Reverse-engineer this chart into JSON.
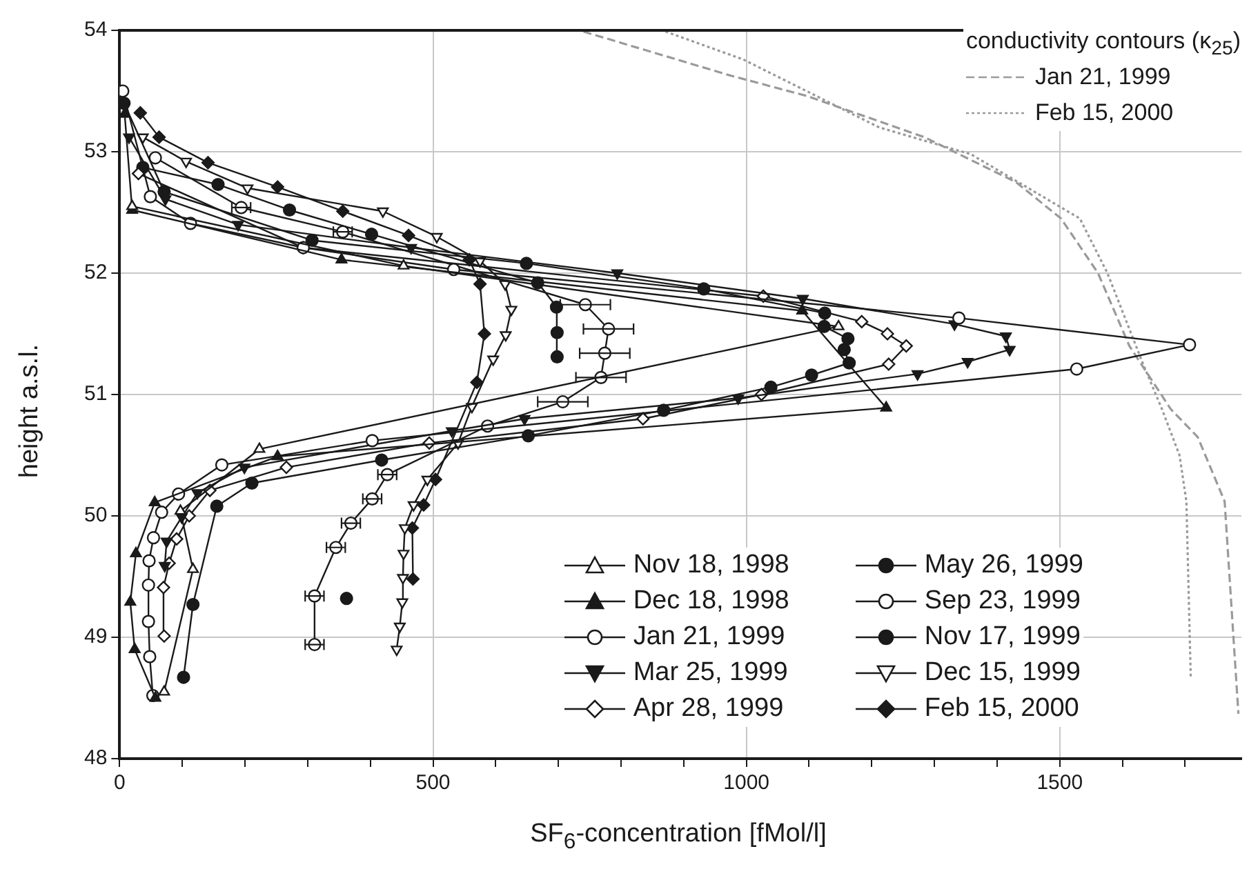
{
  "chart_data": {
    "type": "line",
    "xlabel": "SF$_{6}$-concentration [fMol/l]",
    "ylabel": "height a.s.l.",
    "legend_title": "conductivity contours (κ$_{25}$)",
    "xlim": [
      0,
      1790
    ],
    "ylim": [
      48,
      54
    ],
    "xticks": [
      0,
      {
        "value": 100,
        "label": null
      },
      {
        "value": 200,
        "label": null
      },
      {
        "value": 300,
        "label": null
      },
      {
        "value": 400,
        "label": null
      },
      500,
      {
        "value": 600,
        "label": null
      },
      {
        "value": 700,
        "label": null
      },
      {
        "value": 800,
        "label": null
      },
      {
        "value": 900,
        "label": null
      },
      1000,
      {
        "value": 1100,
        "label": null
      },
      {
        "value": 1200,
        "label": null
      },
      {
        "value": 1300,
        "label": null
      },
      {
        "value": 1400,
        "label": null
      },
      1500,
      {
        "value": 1600,
        "label": null
      },
      {
        "value": 1700,
        "label": null
      }
    ],
    "yticks": [
      48,
      49,
      50,
      51,
      52,
      53,
      54
    ],
    "grid": true,
    "legend": "bottom right",
    "line_style": "solid",
    "series": [
      {
        "name": "Nov 18, 1998",
        "color": "#1a1a1a",
        "marker": "triangle_open",
        "x": [
          71,
          117,
          97,
          223,
          1147,
          453,
          20
        ],
        "values": [
          48.55,
          49.56,
          50.04,
          50.55,
          51.56,
          52.06,
          52.55
        ]
      },
      {
        "name": "Dec 18, 1998",
        "color": "#1a1a1a",
        "marker": "triangle",
        "x": [
          57,
          24,
          17,
          26,
          56,
          252,
          1223,
          1089,
          354,
          20,
          8
        ],
        "values": [
          48.5,
          48.9,
          49.29,
          49.69,
          50.11,
          50.49,
          50.89,
          51.69,
          52.11,
          52.52,
          53.31
        ]
      },
      {
        "name": "Jan 21, 1999",
        "color": "#1a1a1a",
        "marker": "circle_open",
        "x": [
          53,
          48,
          46,
          46,
          47,
          54,
          67,
          94,
          163,
          403,
          1527,
          1707,
          1339,
          533,
          293,
          113,
          49,
          5
        ],
        "values": [
          48.52,
          48.84,
          49.13,
          49.43,
          49.63,
          49.82,
          50.03,
          50.18,
          50.42,
          50.62,
          51.21,
          51.41,
          51.63,
          52.03,
          52.21,
          52.41,
          52.63,
          53.5
        ]
      },
      {
        "name": "Mar 25, 1999",
        "color": "#1a1a1a",
        "marker": "triangle_down",
        "x": [
          72,
          75,
          99,
          124,
          199,
          530,
          646,
          987,
          1273,
          1353,
          1420,
          1414,
          1332,
          1090,
          794,
          465,
          189,
          73,
          15
        ],
        "values": [
          49.59,
          49.79,
          49.99,
          50.19,
          50.4,
          50.7,
          50.8,
          50.97,
          51.17,
          51.27,
          51.37,
          51.48,
          51.58,
          51.79,
          52.0,
          52.21,
          52.4,
          52.61,
          53.12
        ]
      },
      {
        "name": "Apr 28, 1999",
        "color": "#1a1a1a",
        "marker": "diamond_open",
        "x": [
          71,
          70,
          79,
          91,
          111,
          144,
          266,
          494,
          835,
          1024,
          1227,
          1255,
          1225,
          1184,
          1027,
          293,
          30
        ],
        "values": [
          49.01,
          49.41,
          49.61,
          49.81,
          50.0,
          50.21,
          50.4,
          50.6,
          50.8,
          51.0,
          51.25,
          51.4,
          51.5,
          51.6,
          51.81,
          52.21,
          52.82
        ]
      },
      {
        "name": "May 26, 1999",
        "color": "#1a1a1a",
        "marker": "circle",
        "x": [
          102,
          117,
          155,
          211,
          418,
          652,
          868,
          1039,
          1104,
          1164,
          1156,
          1162,
          1124,
          1125,
          932,
          649,
          307,
          71,
          7
        ],
        "values": [
          48.67,
          49.27,
          50.08,
          50.27,
          50.46,
          50.66,
          50.87,
          51.06,
          51.16,
          51.26,
          51.37,
          51.46,
          51.56,
          51.67,
          51.87,
          52.08,
          52.27,
          52.67,
          53.4
        ]
      },
      {
        "name": "Sep 23, 1999",
        "color": "#1a1a1a",
        "marker": "circle_open",
        "x": [
          311,
          311,
          345,
          369,
          403,
          427,
          587,
          707,
          768,
          774,
          780,
          743,
          356,
          194,
          57
        ],
        "values": [
          48.94,
          49.34,
          49.74,
          49.94,
          50.14,
          50.34,
          50.74,
          50.94,
          51.14,
          51.34,
          51.54,
          51.74,
          52.34,
          52.54,
          52.95
        ],
        "xerrors": [
          15,
          15,
          15,
          15,
          15,
          15,
          null,
          40,
          40,
          40,
          40,
          40,
          15,
          15,
          null
        ]
      },
      {
        "name": "Nov 17, 1999",
        "color": "#1a1a1a",
        "marker": "circle",
        "x": [
          362,
          null,
          698,
          698,
          697,
          667,
          402,
          271,
          157,
          37
        ],
        "values": [
          49.32,
          null,
          51.31,
          51.51,
          51.72,
          51.92,
          52.32,
          52.52,
          52.73,
          52.87
        ]
      },
      {
        "name": "Dec 15, 1999",
        "color": "#1a1a1a",
        "marker": "triangle_down_open",
        "x": [
          442,
          447,
          451,
          452,
          453,
          455,
          469,
          491,
          540,
          562,
          596,
          616,
          625,
          615,
          575,
          506,
          420,
          204,
          106,
          37
        ],
        "values": [
          48.9,
          49.09,
          49.29,
          49.49,
          49.69,
          49.9,
          50.09,
          50.3,
          50.6,
          50.9,
          51.29,
          51.49,
          51.7,
          51.91,
          52.1,
          52.3,
          52.51,
          52.7,
          52.92,
          53.12
        ]
      },
      {
        "name": "Feb 15, 2000",
        "color": "#1a1a1a",
        "marker": "diamond",
        "x": [
          468,
          467,
          485,
          504,
          570,
          582,
          575,
          558,
          461,
          356,
          252,
          141,
          63,
          33
        ],
        "values": [
          49.48,
          49.9,
          50.09,
          50.3,
          51.1,
          51.5,
          51.91,
          52.11,
          52.31,
          52.51,
          52.71,
          52.91,
          53.12,
          53.32
        ]
      },
      {
        "name": "Jan 21, 1999",
        "color": "#9a9a9a",
        "marker": "none",
        "line_style": "dashed",
        "x": [
          740,
          973,
          1096,
          1284,
          1430,
          1502,
          1561,
          1611,
          1677,
          1720,
          1763,
          1785
        ],
        "values": [
          53.99,
          53.63,
          53.46,
          53.12,
          52.75,
          52.45,
          52.0,
          51.4,
          50.88,
          50.65,
          50.12,
          48.37
        ]
      },
      {
        "name": "Feb 15, 2000",
        "color": "#9a9a9a",
        "marker": "none",
        "line_style": "dotted",
        "x": [
          871,
          995,
          1212,
          1358,
          1532,
          1576,
          1633,
          1663,
          1691,
          1702,
          1709
        ],
        "values": [
          53.99,
          53.76,
          53.2,
          52.98,
          52.45,
          52.0,
          51.25,
          50.88,
          50.5,
          50.12,
          48.66
        ]
      }
    ]
  }
}
